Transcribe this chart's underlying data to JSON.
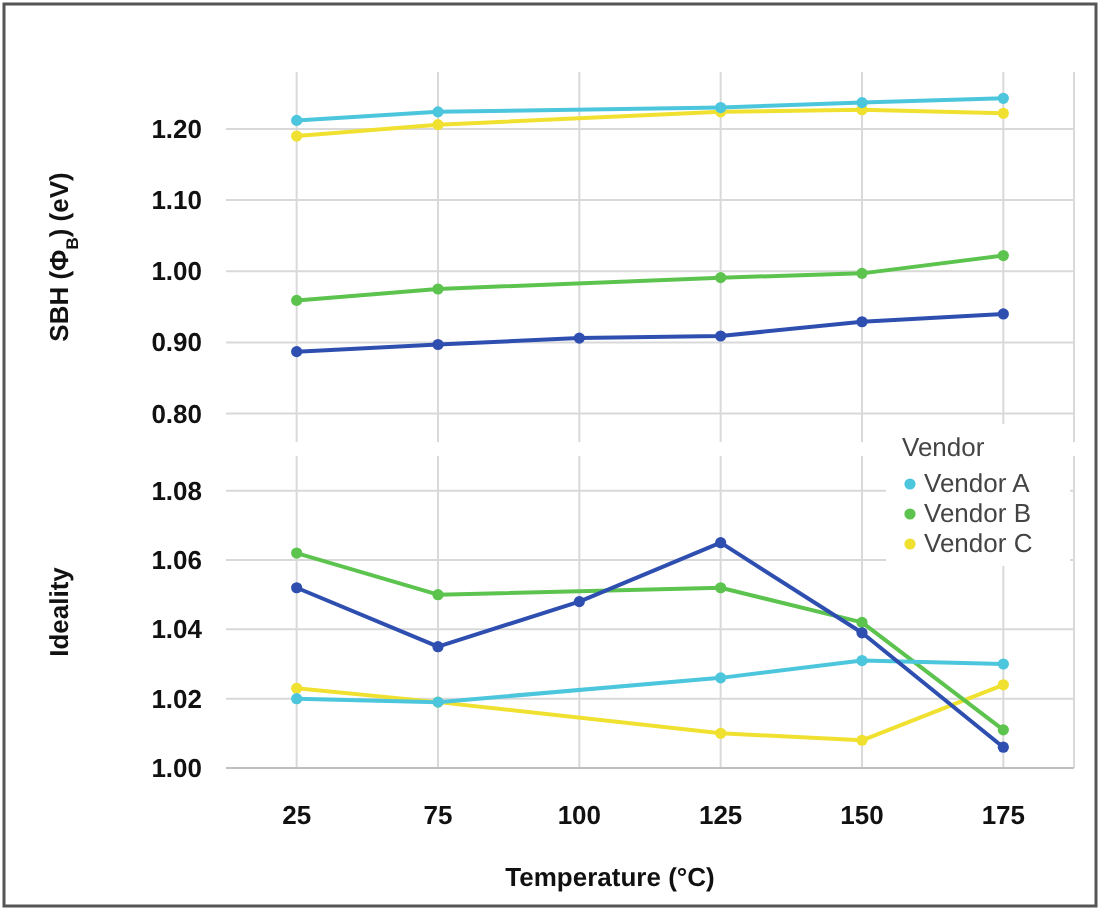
{
  "chart_data": [
    {
      "type": "line",
      "ylabel": "SBH (Φ$_{B}$) (eV)",
      "categories": [
        "25",
        "75",
        "100",
        "125",
        "150",
        "175"
      ],
      "ylim": [
        0.76,
        1.28
      ],
      "yticks": [
        {
          "value": 0.8,
          "label": "0.80"
        },
        {
          "value": 0.9,
          "label": "0.90"
        },
        {
          "value": 1.0,
          "label": "1.00"
        },
        {
          "value": 1.1,
          "label": "1.10"
        },
        {
          "value": 1.2,
          "label": "1.20"
        }
      ],
      "grid": true,
      "marker": "circle",
      "tick_labels": "y",
      "legend": "bottom right",
      "legend_title": "Vendor",
      "series": [
        {
          "color": "#2e4fb0",
          "values": [
            0.887,
            0.897,
            0.906,
            0.909,
            0.929,
            0.94
          ]
        },
        {
          "name": "Vendor A",
          "color": "#4cc6dc",
          "values": [
            1.212,
            1.224,
            null,
            1.23,
            1.237,
            1.243
          ]
        },
        {
          "name": "Vendor B",
          "color": "#5cc44e",
          "values": [
            0.959,
            0.975,
            null,
            0.991,
            0.997,
            1.022
          ]
        },
        {
          "name": "Vendor C",
          "color": "#f0e130",
          "values": [
            1.19,
            1.206,
            null,
            1.224,
            1.227,
            1.222
          ]
        }
      ]
    },
    {
      "type": "line",
      "ylabel": "Ideality",
      "xlabel": "Temperature (°C)",
      "categories": [
        "25",
        "75",
        "100",
        "125",
        "150",
        "175"
      ],
      "ylim": [
        1.0,
        1.09
      ],
      "yticks": [
        {
          "value": 1.0,
          "label": "1.00"
        },
        {
          "value": 1.02,
          "label": "1.02"
        },
        {
          "value": 1.04,
          "label": "1.04"
        },
        {
          "value": 1.06,
          "label": "1.06"
        },
        {
          "value": 1.08,
          "label": "1.08"
        }
      ],
      "grid": true,
      "marker": "circle",
      "series": [
        {
          "color": "#2e4fb0",
          "values": [
            1.052,
            1.035,
            1.048,
            1.065,
            1.039,
            1.006
          ]
        },
        {
          "color": "#4cc6dc",
          "values": [
            1.02,
            1.019,
            null,
            1.026,
            1.031,
            1.03
          ]
        },
        {
          "color": "#5cc44e",
          "values": [
            1.062,
            1.05,
            null,
            1.052,
            1.042,
            1.011
          ]
        },
        {
          "color": "#f0e130",
          "values": [
            1.023,
            1.019,
            null,
            1.01,
            1.008,
            1.024
          ]
        }
      ]
    }
  ]
}
